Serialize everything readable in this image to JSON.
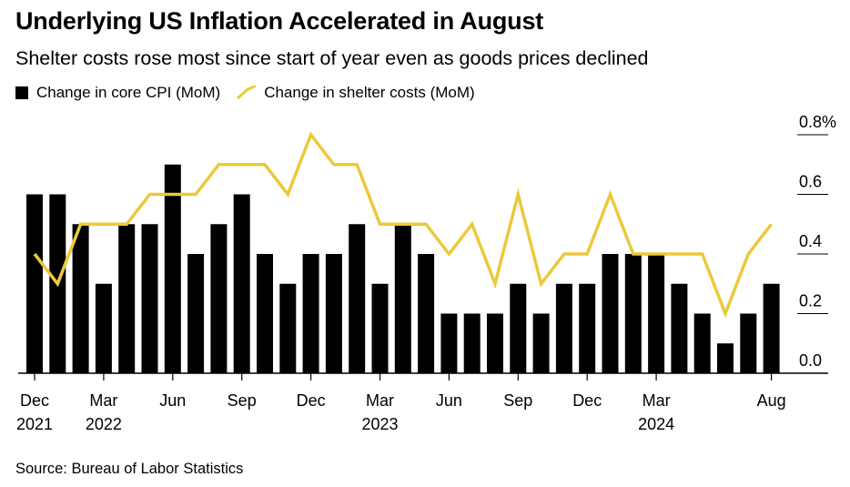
{
  "title": "Underlying US Inflation Accelerated in August",
  "subtitle": "Shelter costs rose most since start of year even as goods prices declined",
  "source": "Source: Bureau of Labor Statistics",
  "colors": {
    "bars": "#000000",
    "line": "#ebc93c",
    "grid": "#000000"
  },
  "chart_data": {
    "type": "bar",
    "x": [
      "2021-12",
      "2022-01",
      "2022-02",
      "2022-03",
      "2022-04",
      "2022-05",
      "2022-06",
      "2022-07",
      "2022-08",
      "2022-09",
      "2022-10",
      "2022-11",
      "2022-12",
      "2023-01",
      "2023-02",
      "2023-03",
      "2023-04",
      "2023-05",
      "2023-06",
      "2023-07",
      "2023-08",
      "2023-09",
      "2023-10",
      "2023-11",
      "2023-12",
      "2024-01",
      "2024-02",
      "2024-03",
      "2024-04",
      "2024-05",
      "2024-06",
      "2024-07",
      "2024-08"
    ],
    "series": [
      {
        "name": "Change in core CPI (MoM)",
        "type": "bar",
        "values": [
          0.6,
          0.6,
          0.5,
          0.3,
          0.5,
          0.5,
          0.7,
          0.4,
          0.5,
          0.6,
          0.4,
          0.3,
          0.4,
          0.4,
          0.5,
          0.3,
          0.5,
          0.4,
          0.2,
          0.2,
          0.2,
          0.3,
          0.2,
          0.3,
          0.3,
          0.4,
          0.4,
          0.4,
          0.3,
          0.2,
          0.1,
          0.2,
          0.3
        ]
      },
      {
        "name": "Change in shelter costs (MoM)",
        "type": "line",
        "values": [
          0.4,
          0.3,
          0.5,
          0.5,
          0.5,
          0.6,
          0.6,
          0.6,
          0.7,
          0.7,
          0.7,
          0.6,
          0.8,
          0.7,
          0.7,
          0.5,
          0.5,
          0.5,
          0.4,
          0.5,
          0.3,
          0.6,
          0.3,
          0.4,
          0.4,
          0.6,
          0.4,
          0.4,
          0.4,
          0.4,
          0.2,
          0.4,
          0.5
        ]
      }
    ],
    "yticks": [
      {
        "value": 0.0,
        "label": "0.0"
      },
      {
        "value": 0.2,
        "label": "0.2"
      },
      {
        "value": 0.4,
        "label": "0.4"
      },
      {
        "value": 0.6,
        "label": "0.6"
      },
      {
        "value": 0.8,
        "label": "0.8%"
      }
    ],
    "ylim": [
      0,
      0.8
    ],
    "xticks": [
      {
        "index": 0,
        "month": "Dec",
        "year": "2021"
      },
      {
        "index": 3,
        "month": "Mar",
        "year": "2022"
      },
      {
        "index": 6,
        "month": "Jun",
        "year": ""
      },
      {
        "index": 9,
        "month": "Sep",
        "year": ""
      },
      {
        "index": 12,
        "month": "Dec",
        "year": ""
      },
      {
        "index": 15,
        "month": "Mar",
        "year": "2023"
      },
      {
        "index": 18,
        "month": "Jun",
        "year": ""
      },
      {
        "index": 21,
        "month": "Sep",
        "year": ""
      },
      {
        "index": 24,
        "month": "Dec",
        "year": ""
      },
      {
        "index": 27,
        "month": "Mar",
        "year": "2024"
      },
      {
        "index": 32,
        "month": "Aug",
        "year": ""
      }
    ],
    "legend_position": "top-left",
    "grid": true
  }
}
